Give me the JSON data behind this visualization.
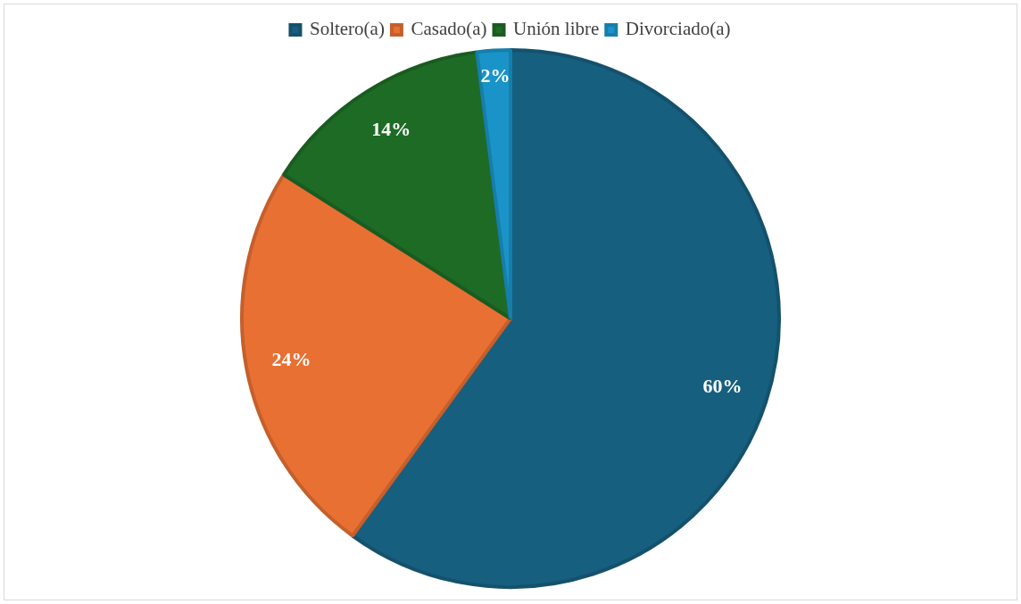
{
  "chart_data": {
    "type": "pie",
    "categories": [
      "Soltero(a)",
      "Casado(a)",
      "Unión libre",
      "Divorciado(a)"
    ],
    "values": [
      60,
      24,
      14,
      2
    ],
    "colors": [
      "#175f7f",
      "#e87033",
      "#1e6b26",
      "#1a94c8"
    ],
    "value_labels": [
      "60%",
      "24%",
      "14%",
      "2%"
    ],
    "legend": "top"
  }
}
